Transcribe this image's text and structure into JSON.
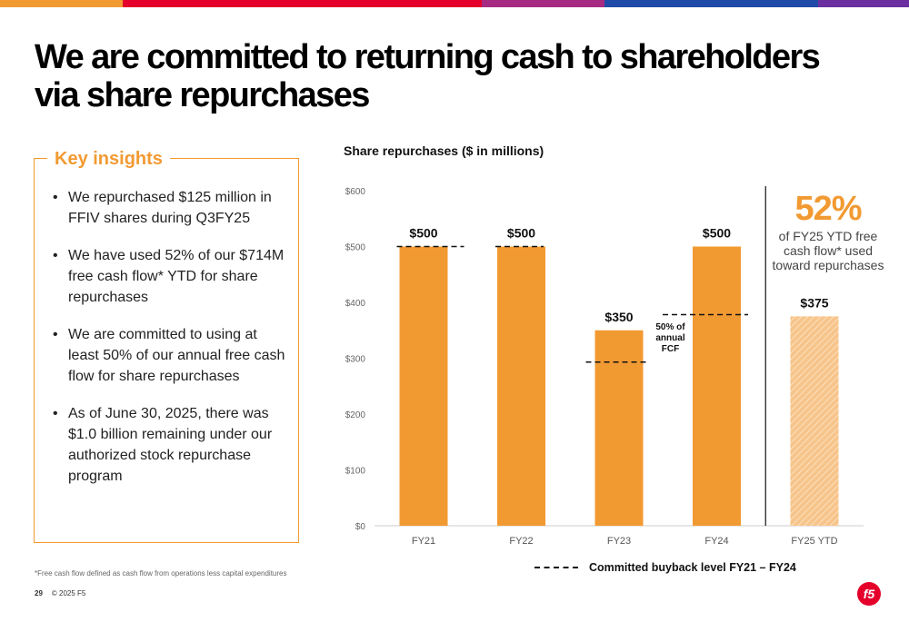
{
  "slide": {
    "title": "We are committed to returning cash to shareholders via share repurchases",
    "top_bar_colors": [
      "#f29a32",
      "#e4002b",
      "#e4002b",
      "#a72a82",
      "#1f4aa8",
      "#6b2fa0"
    ]
  },
  "insights": {
    "heading": "Key insights",
    "items": [
      "We repurchased $125 million in FFIV shares during Q3FY25",
      "We have used 52% of our $714M free cash flow* YTD for share repurchases",
      "We are committed to using at least 50% of our annual free cash flow for share repurchases",
      "As of June 30, 2025, there was $1.0 billion remaining under our authorized stock repurchase program"
    ]
  },
  "chart_data": {
    "type": "bar",
    "title": "Share repurchases ($ in millions)",
    "categories": [
      "FY21",
      "FY22",
      "FY23",
      "FY24",
      "FY25 YTD"
    ],
    "values": [
      500,
      500,
      350,
      500,
      375
    ],
    "data_labels": [
      "$500",
      "$500",
      "$350",
      "$500",
      "$375"
    ],
    "committed_level": [
      500,
      500,
      293,
      378
    ],
    "committed_label": "Committed buyback level FY21 – FY24",
    "annotation": "50% of annual FCF",
    "ylim": [
      0,
      600
    ],
    "y_ticks": [
      0,
      100,
      200,
      300,
      400,
      500,
      600
    ],
    "y_tick_labels": [
      "$0",
      "$100",
      "$200",
      "$300",
      "$400",
      "$500",
      "$600"
    ],
    "bar_color": "#f29a32",
    "projected_color": "#f7c48a",
    "grid": false
  },
  "callout": {
    "percent": "52%",
    "text": "of FY25 YTD free cash flow* used toward repurchases"
  },
  "footnote": "*Free cash flow defined as cash flow from operations less capital expenditures",
  "footer": {
    "page": "29",
    "copyright": "© 2025 F5"
  },
  "logo": {
    "text": "f5",
    "color": "#e4002b"
  }
}
